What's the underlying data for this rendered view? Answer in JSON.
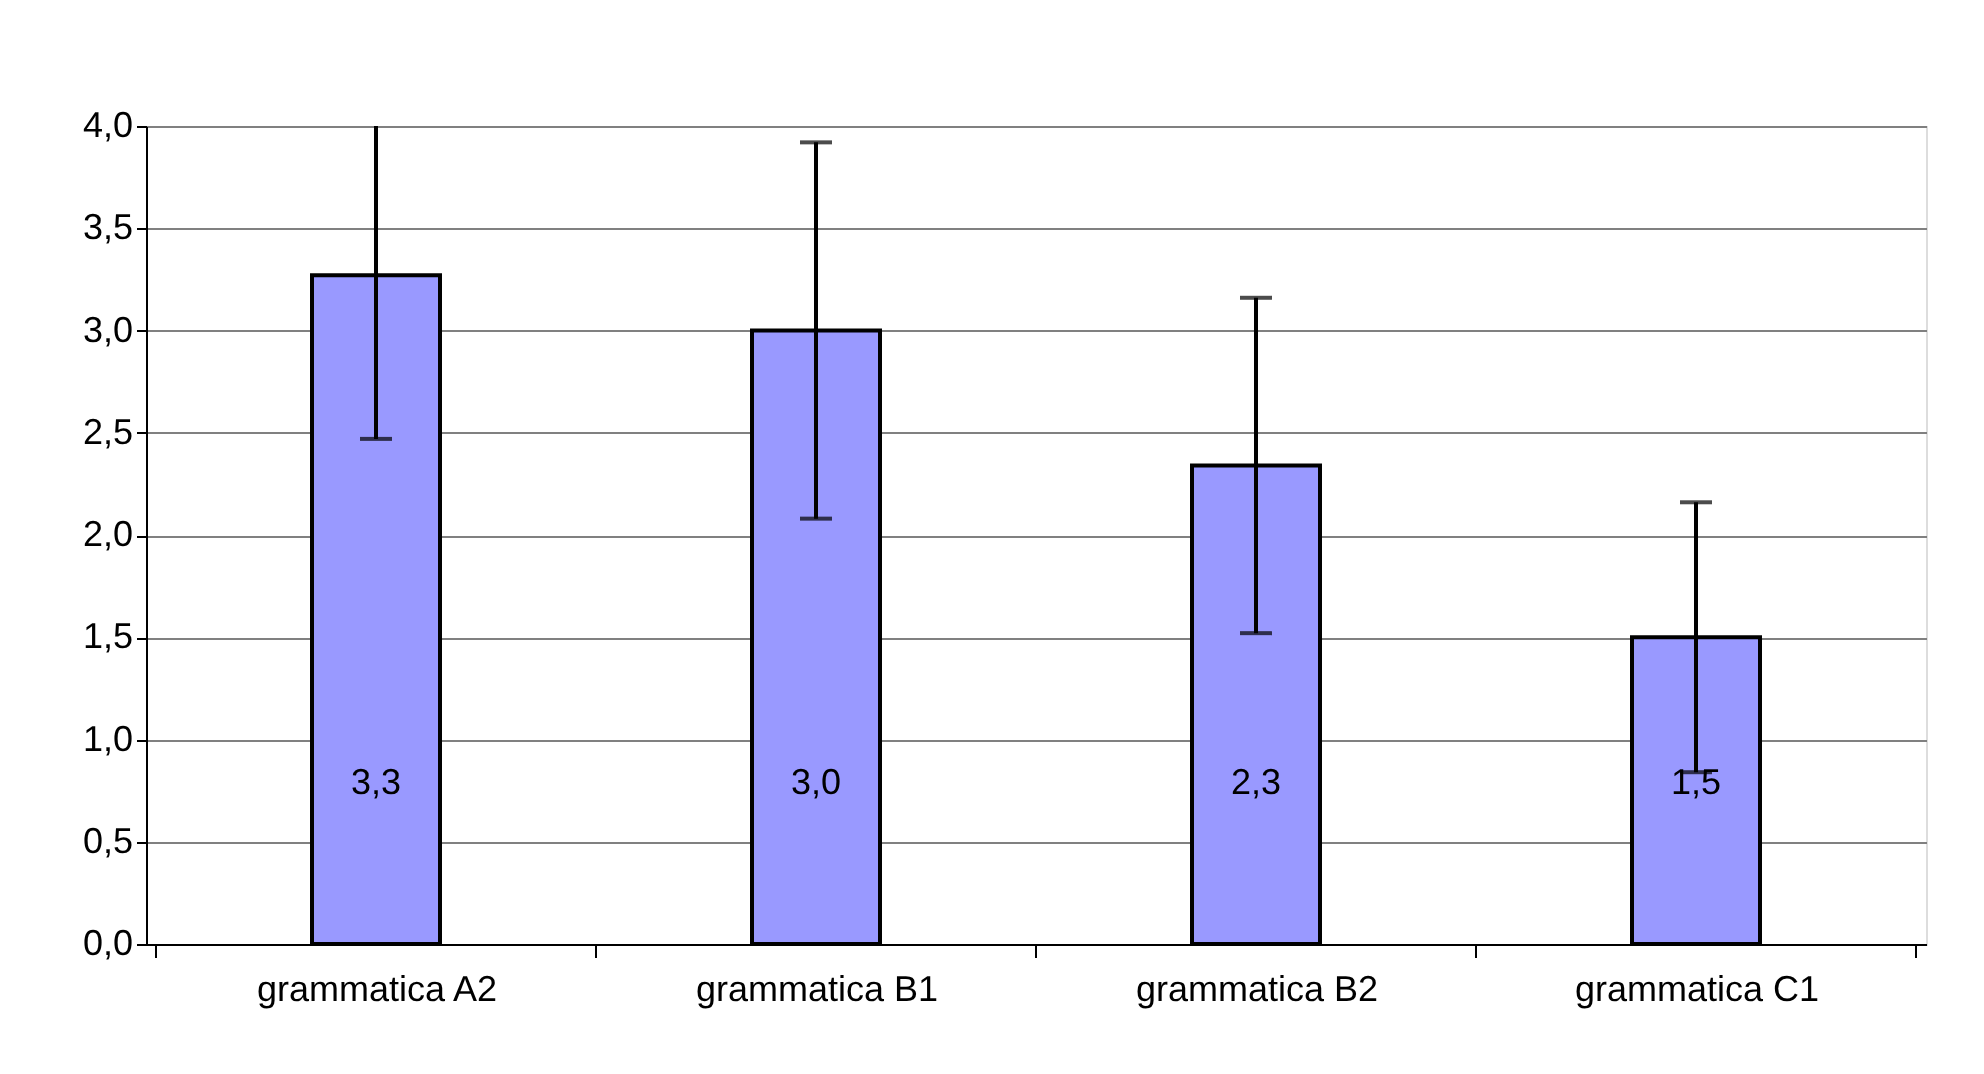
{
  "chart_data": {
    "type": "bar",
    "categories": [
      "grammatica A2",
      "grammatica B1",
      "grammatica B2",
      "grammatica C1"
    ],
    "values": [
      3.27,
      3.0,
      2.34,
      1.5
    ],
    "value_labels": [
      "3,3",
      "3,0",
      "2,3",
      "1,5"
    ],
    "errors": [
      [
        2.47,
        4.0
      ],
      0.92,
      0.82,
      0.66
    ],
    "color": "#9999ff",
    "ylim": [
      0,
      4
    ],
    "yticks": [
      {
        "value": 0,
        "label": "0,0"
      },
      {
        "value": 0.5,
        "label": "0,5"
      },
      {
        "value": 1,
        "label": "1,0"
      },
      {
        "value": 1.5,
        "label": "1,5"
      },
      {
        "value": 2,
        "label": "2,0"
      },
      {
        "value": 2.5,
        "label": "2,5"
      },
      {
        "value": 3,
        "label": "3,0"
      },
      {
        "value": 3.5,
        "label": "3,5"
      },
      {
        "value": 4,
        "label": "4,0"
      }
    ],
    "grid": "y"
  }
}
